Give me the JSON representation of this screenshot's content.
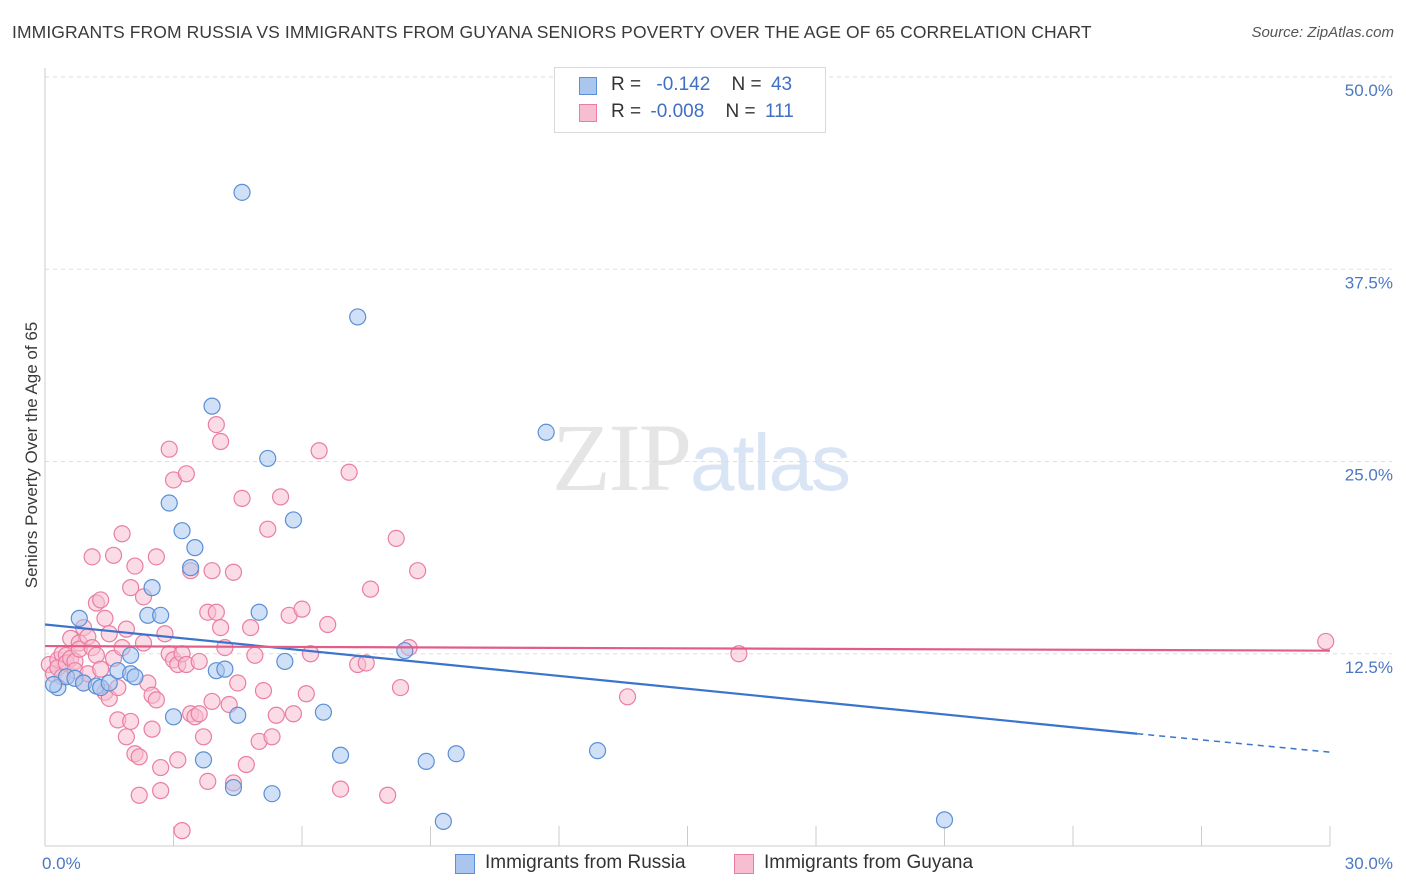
{
  "header": {
    "title": "IMMIGRANTS FROM RUSSIA VS IMMIGRANTS FROM GUYANA SENIORS POVERTY OVER THE AGE OF 65 CORRELATION CHART",
    "source": "Source: ZipAtlas.com"
  },
  "watermark": {
    "zip": "ZIP",
    "atlas": "atlas"
  },
  "legend": {
    "russia": {
      "r_label": "R =",
      "r_value": "-0.142",
      "n_label": "N =",
      "n_value": "43"
    },
    "guyana": {
      "r_label": "R =",
      "r_value": "-0.008",
      "n_label": "N =",
      "n_value": "111"
    }
  },
  "colors": {
    "russia_fill": "#aac6ee",
    "russia_stroke": "#5b8fd6",
    "russia_line": "#3a74cc",
    "guyana_fill": "#f7bdd0",
    "guyana_stroke": "#ea7ea2",
    "guyana_line": "#e35c88",
    "grid": "#dddddd",
    "tick_text": "#4a78c2"
  },
  "chart_data": {
    "type": "scatter",
    "title": "IMMIGRANTS FROM RUSSIA VS IMMIGRANTS FROM GUYANA SENIORS POVERTY OVER THE AGE OF 65 CORRELATION CHART",
    "xlabel": "",
    "ylabel": "Seniors Poverty Over the Age of 65",
    "xlim": [
      0,
      30
    ],
    "ylim": [
      0,
      50
    ],
    "x_ticks": [
      {
        "value": 0,
        "label": "0.0%"
      },
      {
        "value": 30,
        "label": "30.0%"
      }
    ],
    "y_ticks": [
      {
        "value": 12.5,
        "label": "12.5%"
      },
      {
        "value": 25,
        "label": "25.0%"
      },
      {
        "value": 37.5,
        "label": "37.5%"
      },
      {
        "value": 50,
        "label": "50.0%"
      }
    ],
    "grid": true,
    "legend_position": "top-center",
    "series": [
      {
        "name": "Immigrants from Russia",
        "R": -0.142,
        "N": 43,
        "trend": {
          "x0": 0,
          "y0": 14.4,
          "x1": 25.5,
          "y1": 7.3,
          "dash_to_x": 30,
          "dash_to_y": 6.1
        },
        "points": [
          [
            0.3,
            10.3
          ],
          [
            0.5,
            11.0
          ],
          [
            0.7,
            10.9
          ],
          [
            0.8,
            14.8
          ],
          [
            0.9,
            10.6
          ],
          [
            1.2,
            10.4
          ],
          [
            1.3,
            10.3
          ],
          [
            1.5,
            10.6
          ],
          [
            1.7,
            11.4
          ],
          [
            2.0,
            11.2
          ],
          [
            2.0,
            12.4
          ],
          [
            2.1,
            11.0
          ],
          [
            2.4,
            15.0
          ],
          [
            2.5,
            16.8
          ],
          [
            2.7,
            15.0
          ],
          [
            2.9,
            22.3
          ],
          [
            3.0,
            8.4
          ],
          [
            3.2,
            20.5
          ],
          [
            3.4,
            18.1
          ],
          [
            3.5,
            19.4
          ],
          [
            3.7,
            5.6
          ],
          [
            3.9,
            28.6
          ],
          [
            4.0,
            11.4
          ],
          [
            4.2,
            11.5
          ],
          [
            4.4,
            3.8
          ],
          [
            4.5,
            8.5
          ],
          [
            4.6,
            42.5
          ],
          [
            5.0,
            15.2
          ],
          [
            5.2,
            25.2
          ],
          [
            5.3,
            3.4
          ],
          [
            5.6,
            12.0
          ],
          [
            5.8,
            21.2
          ],
          [
            6.5,
            8.7
          ],
          [
            6.9,
            5.9
          ],
          [
            7.3,
            34.4
          ],
          [
            8.4,
            12.7
          ],
          [
            8.9,
            5.5
          ],
          [
            9.3,
            1.6
          ],
          [
            9.6,
            6.0
          ],
          [
            11.7,
            26.9
          ],
          [
            12.9,
            6.2
          ],
          [
            21.0,
            1.7
          ],
          [
            0.2,
            10.5
          ]
        ]
      },
      {
        "name": "Immigrants from Guyana",
        "R": -0.008,
        "N": 111,
        "trend": {
          "x0": 0,
          "y0": 13.0,
          "x1": 30,
          "y1": 12.7
        },
        "points": [
          [
            0.1,
            11.8
          ],
          [
            0.2,
            11.2
          ],
          [
            0.3,
            12.1
          ],
          [
            0.3,
            11.6
          ],
          [
            0.4,
            12.5
          ],
          [
            0.4,
            11.0
          ],
          [
            0.5,
            12.4
          ],
          [
            0.5,
            11.9
          ],
          [
            0.6,
            12.2
          ],
          [
            0.6,
            13.5
          ],
          [
            0.7,
            12.0
          ],
          [
            0.7,
            11.4
          ],
          [
            0.8,
            13.2
          ],
          [
            0.8,
            12.8
          ],
          [
            0.9,
            14.2
          ],
          [
            0.9,
            10.6
          ],
          [
            1.0,
            13.6
          ],
          [
            1.0,
            11.2
          ],
          [
            1.1,
            12.9
          ],
          [
            1.1,
            18.8
          ],
          [
            1.2,
            15.8
          ],
          [
            1.2,
            12.4
          ],
          [
            1.3,
            16.0
          ],
          [
            1.3,
            11.5
          ],
          [
            1.4,
            14.8
          ],
          [
            1.4,
            10.0
          ],
          [
            1.5,
            13.8
          ],
          [
            1.5,
            9.6
          ],
          [
            1.6,
            18.9
          ],
          [
            1.6,
            12.2
          ],
          [
            1.7,
            8.2
          ],
          [
            1.7,
            10.3
          ],
          [
            1.8,
            12.9
          ],
          [
            1.8,
            20.3
          ],
          [
            1.9,
            14.1
          ],
          [
            1.9,
            7.1
          ],
          [
            2.0,
            16.8
          ],
          [
            2.0,
            8.1
          ],
          [
            2.1,
            18.2
          ],
          [
            2.1,
            6.0
          ],
          [
            2.2,
            5.8
          ],
          [
            2.2,
            3.3
          ],
          [
            2.3,
            16.2
          ],
          [
            2.3,
            13.2
          ],
          [
            2.4,
            10.6
          ],
          [
            2.5,
            9.8
          ],
          [
            2.5,
            7.6
          ],
          [
            2.6,
            18.8
          ],
          [
            2.6,
            9.5
          ],
          [
            2.7,
            5.1
          ],
          [
            2.7,
            3.6
          ],
          [
            2.8,
            13.8
          ],
          [
            2.9,
            12.5
          ],
          [
            2.9,
            25.8
          ],
          [
            3.0,
            23.8
          ],
          [
            3.0,
            12.1
          ],
          [
            3.1,
            11.8
          ],
          [
            3.1,
            5.6
          ],
          [
            3.2,
            12.5
          ],
          [
            3.2,
            1.0
          ],
          [
            3.3,
            24.2
          ],
          [
            3.3,
            11.8
          ],
          [
            3.4,
            17.9
          ],
          [
            3.4,
            8.6
          ],
          [
            3.5,
            8.4
          ],
          [
            3.6,
            12.0
          ],
          [
            3.6,
            8.6
          ],
          [
            3.7,
            7.1
          ],
          [
            3.8,
            15.2
          ],
          [
            3.8,
            4.2
          ],
          [
            3.9,
            17.9
          ],
          [
            3.9,
            9.4
          ],
          [
            4.0,
            27.4
          ],
          [
            4.0,
            15.2
          ],
          [
            4.1,
            14.2
          ],
          [
            4.1,
            26.3
          ],
          [
            4.2,
            12.9
          ],
          [
            4.3,
            9.2
          ],
          [
            4.4,
            17.8
          ],
          [
            4.4,
            4.1
          ],
          [
            4.5,
            10.6
          ],
          [
            4.6,
            22.6
          ],
          [
            4.7,
            5.3
          ],
          [
            4.8,
            14.2
          ],
          [
            4.9,
            12.4
          ],
          [
            5.0,
            6.8
          ],
          [
            5.1,
            10.1
          ],
          [
            5.2,
            20.6
          ],
          [
            5.3,
            7.1
          ],
          [
            5.4,
            8.5
          ],
          [
            5.5,
            22.7
          ],
          [
            5.7,
            15.0
          ],
          [
            5.8,
            8.6
          ],
          [
            6.0,
            15.4
          ],
          [
            6.1,
            9.9
          ],
          [
            6.2,
            12.5
          ],
          [
            6.4,
            25.7
          ],
          [
            6.6,
            14.4
          ],
          [
            6.9,
            3.7
          ],
          [
            7.1,
            24.3
          ],
          [
            7.3,
            11.8
          ],
          [
            7.5,
            11.9
          ],
          [
            7.6,
            16.7
          ],
          [
            8.0,
            3.3
          ],
          [
            8.2,
            20.0
          ],
          [
            8.3,
            10.3
          ],
          [
            8.5,
            12.9
          ],
          [
            8.7,
            17.9
          ],
          [
            13.6,
            9.7
          ],
          [
            16.2,
            12.5
          ],
          [
            29.9,
            13.3
          ]
        ]
      }
    ]
  }
}
